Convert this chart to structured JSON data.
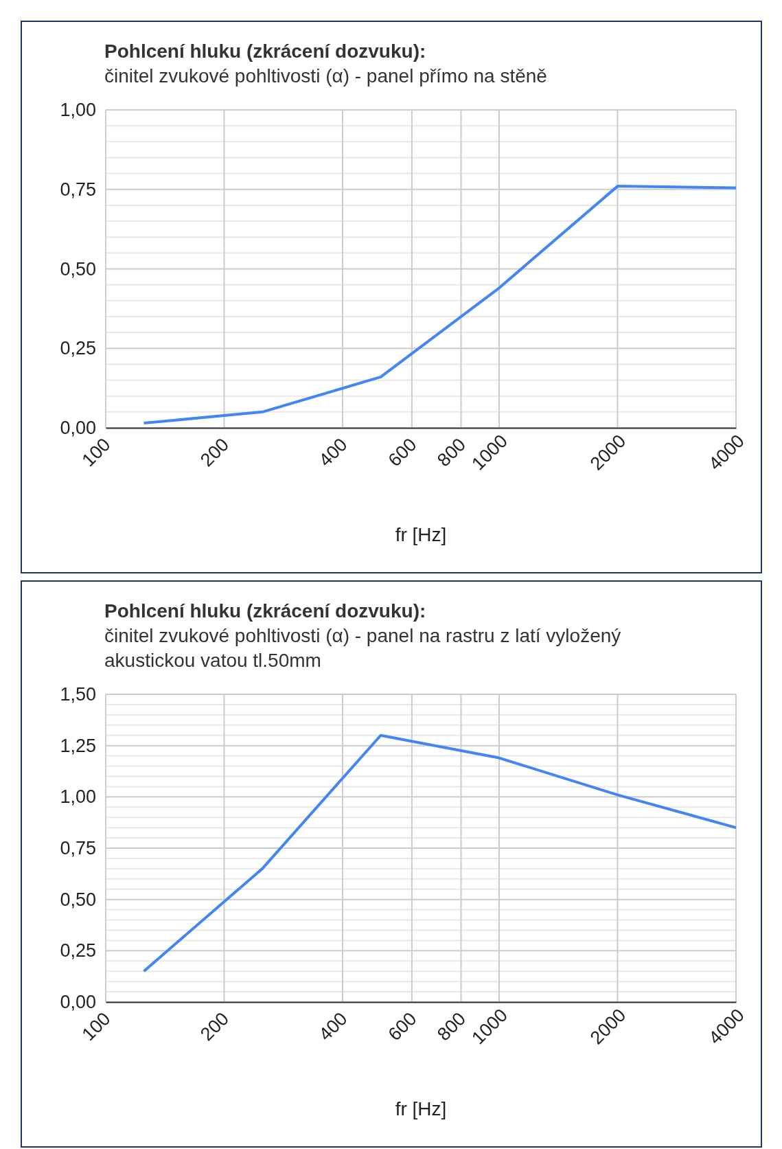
{
  "chart_data": [
    {
      "type": "line",
      "title": "Pohlcení hluku (zkrácení dozvuku):",
      "subtitle": "činitel zvukové pohltivosti (α) - panel přímo na stěně",
      "xlabel": "fr [Hz]",
      "log": "x",
      "grid": true,
      "marker": "none",
      "line_style": "solid",
      "x": [
        125,
        250,
        500,
        1000,
        2000,
        4000
      ],
      "series": [
        {
          "color": "#4285f4",
          "values": [
            0.015,
            0.05,
            0.16,
            0.44,
            0.76,
            0.755
          ]
        }
      ],
      "xlim": [
        100,
        4000
      ],
      "xticks": [
        100,
        200,
        400,
        600,
        800,
        1000,
        2000,
        4000
      ],
      "ylim": [
        0,
        1
      ],
      "yticks": [
        {
          "value": 0,
          "label": "0,00"
        },
        {
          "value": 0.05,
          "label": null
        },
        {
          "value": 0.1,
          "label": null
        },
        {
          "value": 0.15,
          "label": null
        },
        {
          "value": 0.2,
          "label": null
        },
        {
          "value": 0.25,
          "label": "0,25"
        },
        {
          "value": 0.3,
          "label": null
        },
        {
          "value": 0.35,
          "label": null
        },
        {
          "value": 0.4,
          "label": null
        },
        {
          "value": 0.45,
          "label": null
        },
        {
          "value": 0.5,
          "label": "0,50"
        },
        {
          "value": 0.55,
          "label": null
        },
        {
          "value": 0.6,
          "label": null
        },
        {
          "value": 0.65,
          "label": null
        },
        {
          "value": 0.7,
          "label": null
        },
        {
          "value": 0.75,
          "label": "0,75"
        },
        {
          "value": 0.8,
          "label": null
        },
        {
          "value": 0.85,
          "label": null
        },
        {
          "value": 0.9,
          "label": null
        },
        {
          "value": 0.95,
          "label": null
        },
        {
          "value": 1,
          "label": "1,00"
        }
      ]
    },
    {
      "type": "line",
      "title": "Pohlcení hluku (zkrácení dozvuku):",
      "subtitle": "činitel zvukové pohltivosti (α) - panel na rastru z latí vyložený akustickou vatou tl.50mm",
      "xlabel": "fr [Hz]",
      "log": "x",
      "grid": true,
      "marker": "none",
      "line_style": "solid",
      "x": [
        125,
        250,
        500,
        1000,
        2000,
        4000
      ],
      "series": [
        {
          "color": "#4285f4",
          "values": [
            0.15,
            0.65,
            1.3,
            1.19,
            1.01,
            0.85
          ]
        }
      ],
      "xlim": [
        100,
        4000
      ],
      "xticks": [
        100,
        200,
        400,
        600,
        800,
        1000,
        2000,
        4000
      ],
      "ylim": [
        0,
        1.5
      ],
      "yticks": [
        {
          "value": 0,
          "label": "0,00"
        },
        {
          "value": 0.05,
          "label": null
        },
        {
          "value": 0.1,
          "label": null
        },
        {
          "value": 0.15,
          "label": null
        },
        {
          "value": 0.2,
          "label": null
        },
        {
          "value": 0.25,
          "label": "0,25"
        },
        {
          "value": 0.3,
          "label": null
        },
        {
          "value": 0.35,
          "label": null
        },
        {
          "value": 0.4,
          "label": null
        },
        {
          "value": 0.45,
          "label": null
        },
        {
          "value": 0.5,
          "label": "0,50"
        },
        {
          "value": 0.55,
          "label": null
        },
        {
          "value": 0.6,
          "label": null
        },
        {
          "value": 0.65,
          "label": null
        },
        {
          "value": 0.7,
          "label": null
        },
        {
          "value": 0.75,
          "label": "0,75"
        },
        {
          "value": 0.8,
          "label": null
        },
        {
          "value": 0.85,
          "label": null
        },
        {
          "value": 0.9,
          "label": null
        },
        {
          "value": 0.95,
          "label": null
        },
        {
          "value": 1,
          "label": "1,00"
        },
        {
          "value": 1.05,
          "label": null
        },
        {
          "value": 1.1,
          "label": null
        },
        {
          "value": 1.15,
          "label": null
        },
        {
          "value": 1.2,
          "label": null
        },
        {
          "value": 1.25,
          "label": "1,25"
        },
        {
          "value": 1.3,
          "label": null
        },
        {
          "value": 1.35,
          "label": null
        },
        {
          "value": 1.4,
          "label": null
        },
        {
          "value": 1.45,
          "label": null
        },
        {
          "value": 1.5,
          "label": "1,50"
        }
      ]
    }
  ]
}
